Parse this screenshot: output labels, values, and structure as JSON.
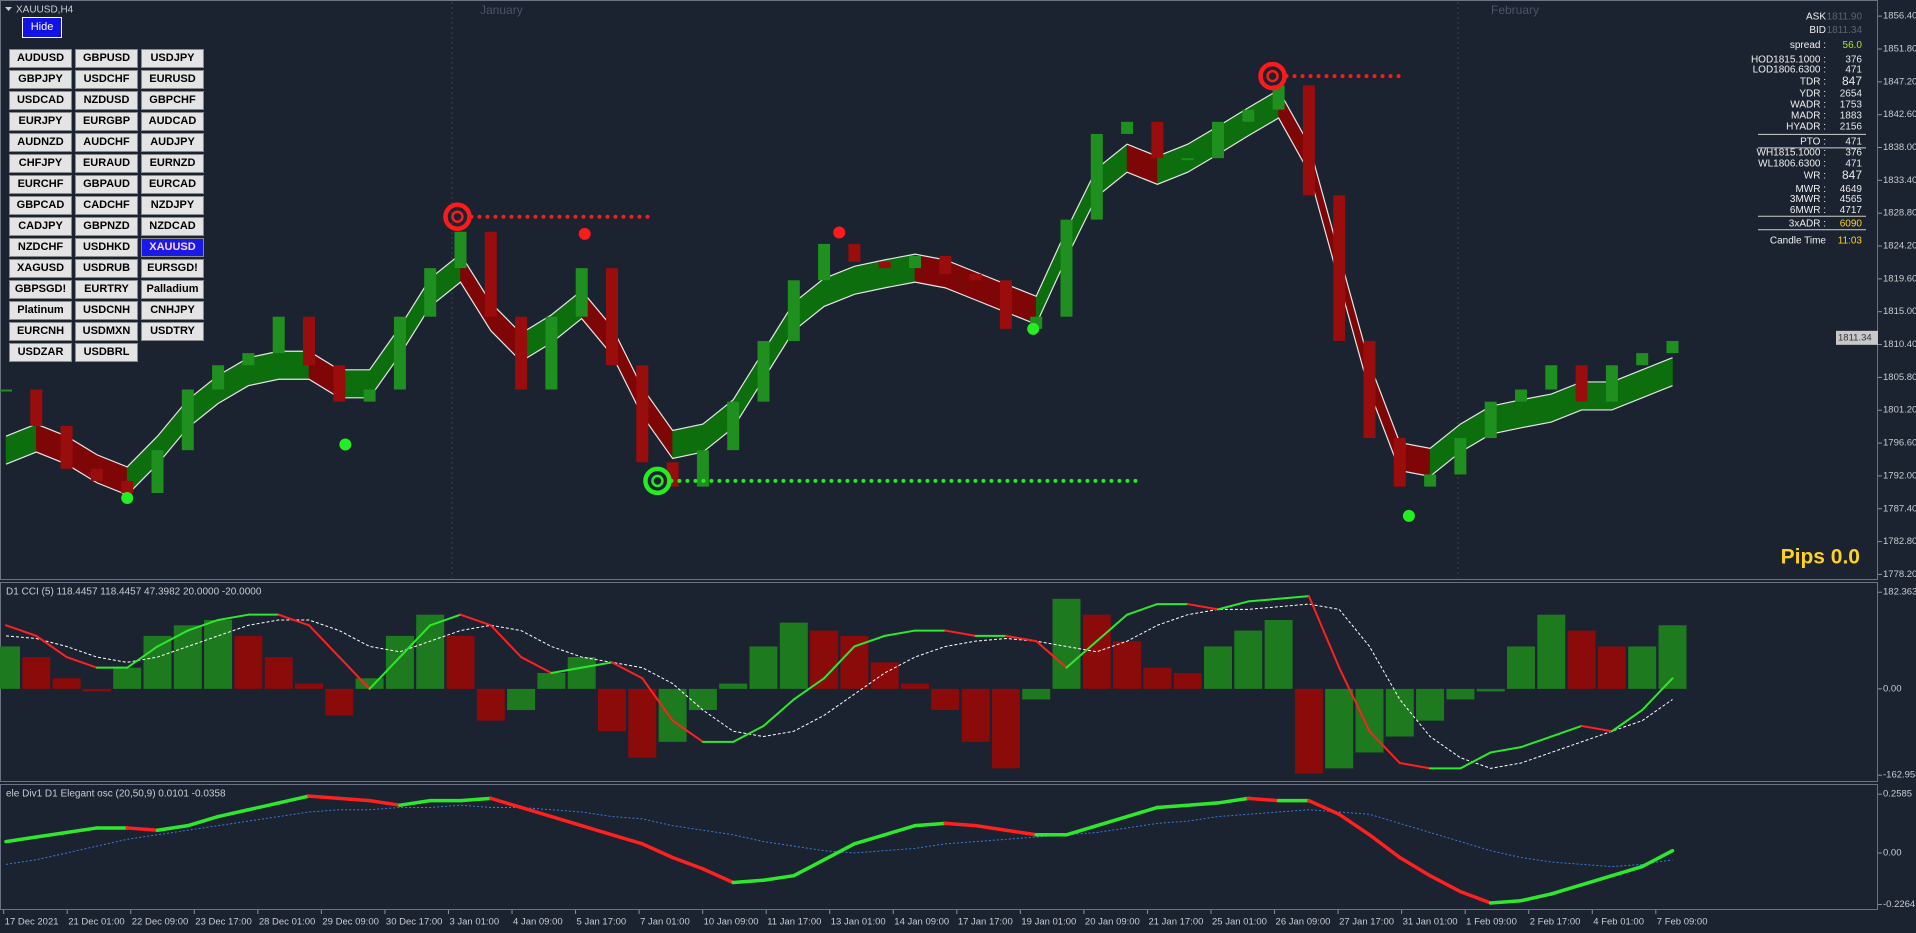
{
  "window": {
    "title": "XAUUSD,H4",
    "hide": "Hide"
  },
  "symbols": [
    [
      "AUDUSD",
      "GBPUSD",
      "USDJPY"
    ],
    [
      "GBPJPY",
      "USDCHF",
      "EURUSD"
    ],
    [
      "USDCAD",
      "NZDUSD",
      "GBPCHF"
    ],
    [
      "EURJPY",
      "EURGBP",
      "AUDCAD"
    ],
    [
      "AUDNZD",
      "AUDCHF",
      "AUDJPY"
    ],
    [
      "CHFJPY",
      "EURAUD",
      "EURNZD"
    ],
    [
      "EURCHF",
      "GBPAUD",
      "EURCAD"
    ],
    [
      "GBPCAD",
      "CADCHF",
      "NZDJPY"
    ],
    [
      "CADJPY",
      "GBPNZD",
      "NZDCAD"
    ],
    [
      "NZDCHF",
      "USDHKD",
      "XAUUSD"
    ],
    [
      "XAGUSD",
      "USDRUB",
      "EURSGD!"
    ],
    [
      "GBPSGD!",
      "EURTRY",
      "Palladium"
    ],
    [
      "Platinum",
      "USDCNH",
      "CNHJPY"
    ],
    [
      "EURCNH",
      "USDMXN",
      "USDTRY"
    ],
    [
      "USDZAR",
      "USDBRL"
    ]
  ],
  "info_panel": [
    {
      "label": "ASK",
      "value": "1811.90"
    },
    {
      "label": "BID",
      "value": "1811.34"
    },
    {
      "label": "spread :",
      "value": "56.0"
    },
    {
      "label": "HOD1815.1000 :",
      "value": "376"
    },
    {
      "label": "LOD1806.6300 :",
      "value": "471"
    },
    {
      "label": "TDR :",
      "value": "847"
    },
    {
      "label": "YDR :",
      "value": "2654"
    },
    {
      "label": "WADR :",
      "value": "1753"
    },
    {
      "label": "MADR :",
      "value": "1883"
    },
    {
      "label": "HYADR :",
      "value": "2156"
    },
    {
      "label": "PTO :",
      "value": "471"
    },
    {
      "label": "WH1815.1000 :",
      "value": "376"
    },
    {
      "label": "WL1806.6300 :",
      "value": "471"
    },
    {
      "label": "WR :",
      "value": "847"
    },
    {
      "label": "MWR :",
      "value": "4649"
    },
    {
      "label": "3MWR :",
      "value": "4565"
    },
    {
      "label": "6MWR :",
      "value": "4717"
    },
    {
      "label": "3xADR :",
      "value": "6090"
    },
    {
      "label": "Candle Time",
      "value": "11:03"
    }
  ],
  "price_chart": {
    "ylim": [
      1777.7,
      1858.1
    ],
    "yticks": [
      {
        "value": 1856.4,
        "label": "1856.40"
      },
      {
        "value": 1851.8,
        "label": "1851.80"
      },
      {
        "value": 1847.2,
        "label": "1847.20"
      },
      {
        "value": 1842.6,
        "label": "1842.60"
      },
      {
        "value": 1838,
        "label": "1838.00"
      },
      {
        "value": 1833.4,
        "label": "1833.40"
      },
      {
        "value": 1828.8,
        "label": "1828.80"
      },
      {
        "value": 1824.2,
        "label": "1824.20"
      },
      {
        "value": 1819.6,
        "label": "1819.60"
      },
      {
        "value": 1815,
        "label": "1815.00"
      },
      {
        "value": 1810.4,
        "label": "1810.40"
      },
      {
        "value": 1805.8,
        "label": "1805.80"
      },
      {
        "value": 1801.2,
        "label": "1801.20"
      },
      {
        "value": 1796.6,
        "label": "1796.60"
      },
      {
        "value": 1792,
        "label": "1792.00"
      },
      {
        "value": 1787.4,
        "label": "1787.40"
      },
      {
        "value": 1782.8,
        "label": "1782.80"
      },
      {
        "value": 1778.2,
        "label": "1778.20"
      }
    ],
    "current_price": 1811.34,
    "months": [
      "January",
      "February"
    ],
    "pips": "Pips 0.0",
    "closes": [
      1804.1,
      1799.0,
      1793.0,
      1791.3,
      1789.6,
      1795.6,
      1804.1,
      1807.5,
      1809.2,
      1814.3,
      1807.5,
      1802.4,
      1804.1,
      1814.3,
      1821.1,
      1826.2,
      1814.3,
      1804.1,
      1814.3,
      1821.1,
      1807.5,
      1793.9,
      1790.5,
      1795.6,
      1802.4,
      1810.9,
      1819.4,
      1824.5,
      1822.0,
      1821.1,
      1822.8,
      1820.3,
      1819.4,
      1812.6,
      1814.3,
      1827.9,
      1839.9,
      1841.6,
      1836.5,
      1836.5,
      1841.6,
      1843.3,
      1846.7,
      1831.3,
      1810.9,
      1797.3,
      1790.5,
      1792.2,
      1797.3,
      1802.4,
      1804.1,
      1807.5,
      1802.4,
      1807.5,
      1809.2,
      1810.9
    ],
    "ribbon": [
      1795.6,
      1797.3,
      1795.6,
      1793.0,
      1791.3,
      1795.6,
      1800.7,
      1804.1,
      1806.6,
      1807.5,
      1807.5,
      1804.9,
      1804.9,
      1810.9,
      1817.7,
      1821.1,
      1814.3,
      1810.0,
      1812.6,
      1816.0,
      1810.9,
      1802.4,
      1796.4,
      1797.3,
      1800.7,
      1807.5,
      1814.3,
      1817.7,
      1819.4,
      1820.3,
      1821.1,
      1820.3,
      1818.6,
      1816.9,
      1815.2,
      1824.5,
      1833.1,
      1836.5,
      1834.8,
      1836.5,
      1839.0,
      1841.6,
      1844.1,
      1836.5,
      1821.1,
      1805.8,
      1794.7,
      1793.9,
      1797.3,
      1799.8,
      1800.7,
      1801.5,
      1803.2,
      1803.2,
      1804.9,
      1806.6
    ],
    "rings": [
      {
        "x": 14.9,
        "y": 1828.3,
        "x_end": 21.2,
        "color": "#ff1a1a"
      },
      {
        "x": 21.5,
        "y": 1791.3,
        "x_end": 37.4,
        "color": "#22ee22"
      },
      {
        "x": 41.8,
        "y": 1848.0,
        "x_end": 46.1,
        "color": "#ff1a1a"
      }
    ],
    "dots": [
      {
        "x": 19.1,
        "y": 1825.9,
        "color": "#ff1a1a"
      },
      {
        "x": 27.5,
        "y": 1826.1,
        "color": "#ff1a1a"
      },
      {
        "x": 4.0,
        "y": 1788.9,
        "color": "#22ee22"
      },
      {
        "x": 11.2,
        "y": 1796.4,
        "color": "#22ee22"
      },
      {
        "x": 33.9,
        "y": 1812.6,
        "color": "#22ee22"
      },
      {
        "x": 46.3,
        "y": 1786.4,
        "color": "#22ee22"
      }
    ]
  },
  "cci_panel": {
    "label": "D1 CCI (5) 118.4457 118.4457 47.3982 20.0000 -20.0000",
    "ylim": [
      -172,
      196
    ],
    "yticks": [
      182.3631,
      {
        "value": 0,
        "label": "0.00"
      },
      -162.9585
    ],
    "histogram": [
      80,
      60,
      20,
      -5,
      40,
      100,
      120,
      130,
      100,
      60,
      10,
      -50,
      20,
      100,
      140,
      100,
      -60,
      -40,
      30,
      60,
      -80,
      -130,
      -100,
      -40,
      10,
      80,
      125,
      110,
      100,
      50,
      10,
      -40,
      -100,
      -150,
      -20,
      170,
      140,
      90,
      40,
      30,
      80,
      110,
      130,
      -160,
      -150,
      -120,
      -90,
      -60,
      -20,
      -5,
      80,
      140,
      110,
      80,
      80,
      120
    ],
    "fast": [
      120,
      100,
      60,
      40,
      40,
      80,
      110,
      130,
      140,
      140,
      120,
      60,
      0,
      60,
      120,
      140,
      120,
      60,
      30,
      40,
      50,
      20,
      -60,
      -100,
      -100,
      -70,
      -20,
      20,
      80,
      100,
      110,
      110,
      100,
      100,
      90,
      40,
      90,
      140,
      160,
      160,
      150,
      165,
      170,
      175,
      40,
      -80,
      -140,
      -150,
      -150,
      -120,
      -110,
      -90,
      -70,
      -80,
      -40,
      20
    ],
    "signal": [
      100,
      95,
      80,
      60,
      50,
      60,
      80,
      100,
      120,
      130,
      130,
      110,
      80,
      70,
      90,
      110,
      120,
      110,
      80,
      60,
      50,
      40,
      10,
      -40,
      -80,
      -90,
      -80,
      -50,
      -10,
      30,
      60,
      80,
      90,
      95,
      90,
      80,
      70,
      90,
      120,
      140,
      150,
      150,
      155,
      160,
      150,
      80,
      -20,
      -90,
      -130,
      -150,
      -140,
      -120,
      -100,
      -80,
      -60,
      -20
    ]
  },
  "osc_panel": {
    "label": "ele Div1 D1 Elegant osc (20,50,9) 0.0101 -0.0358",
    "ylim": [
      -0.242,
      0.29
    ],
    "yticks": [
      0.2585,
      {
        "value": 0,
        "label": "0.00"
      },
      -0.2264
    ],
    "line": [
      0.05,
      0.07,
      0.09,
      0.11,
      0.11,
      0.1,
      0.12,
      0.16,
      0.19,
      0.22,
      0.25,
      0.24,
      0.23,
      0.21,
      0.23,
      0.23,
      0.24,
      0.2,
      0.16,
      0.12,
      0.08,
      0.04,
      -0.02,
      -0.07,
      -0.13,
      -0.12,
      -0.1,
      -0.03,
      0.04,
      0.08,
      0.12,
      0.13,
      0.12,
      0.1,
      0.08,
      0.08,
      0.12,
      0.16,
      0.2,
      0.21,
      0.22,
      0.24,
      0.23,
      0.23,
      0.17,
      0.08,
      -0.02,
      -0.1,
      -0.17,
      -0.22,
      -0.21,
      -0.18,
      -0.14,
      -0.1,
      -0.06,
      0.01
    ],
    "signal": [
      -0.05,
      -0.03,
      0,
      0.03,
      0.06,
      0.08,
      0.1,
      0.12,
      0.14,
      0.16,
      0.18,
      0.19,
      0.19,
      0.2,
      0.2,
      0.21,
      0.2,
      0.2,
      0.19,
      0.18,
      0.16,
      0.15,
      0.12,
      0.1,
      0.08,
      0.05,
      0.03,
      0.01,
      0,
      0.01,
      0.02,
      0.04,
      0.05,
      0.06,
      0.07,
      0.08,
      0.09,
      0.11,
      0.13,
      0.14,
      0.16,
      0.17,
      0.18,
      0.19,
      0.18,
      0.17,
      0.13,
      0.09,
      0.05,
      0.01,
      -0.02,
      -0.04,
      -0.05,
      -0.06,
      -0.05,
      -0.03
    ]
  },
  "time_axis": [
    "17 Dec 2021",
    "21 Dec 01:00",
    "22 Dec 09:00",
    "23 Dec 17:00",
    "28 Dec 01:00",
    "29 Dec 09:00",
    "30 Dec 17:00",
    "3 Jan 01:00",
    "4 Jan 09:00",
    "5 Jan 17:00",
    "7 Jan 01:00",
    "10 Jan 09:00",
    "11 Jan 17:00",
    "13 Jan 01:00",
    "14 Jan 09:00",
    "17 Jan 17:00",
    "19 Jan 01:00",
    "20 Jan 09:00",
    "21 Jan 17:00",
    "25 Jan 01:00",
    "26 Jan 09:00",
    "27 Jan 17:00",
    "31 Jan 01:00",
    "1 Feb 09:00",
    "2 Feb 17:00",
    "4 Feb 01:00",
    "7 Feb 09:00"
  ]
}
